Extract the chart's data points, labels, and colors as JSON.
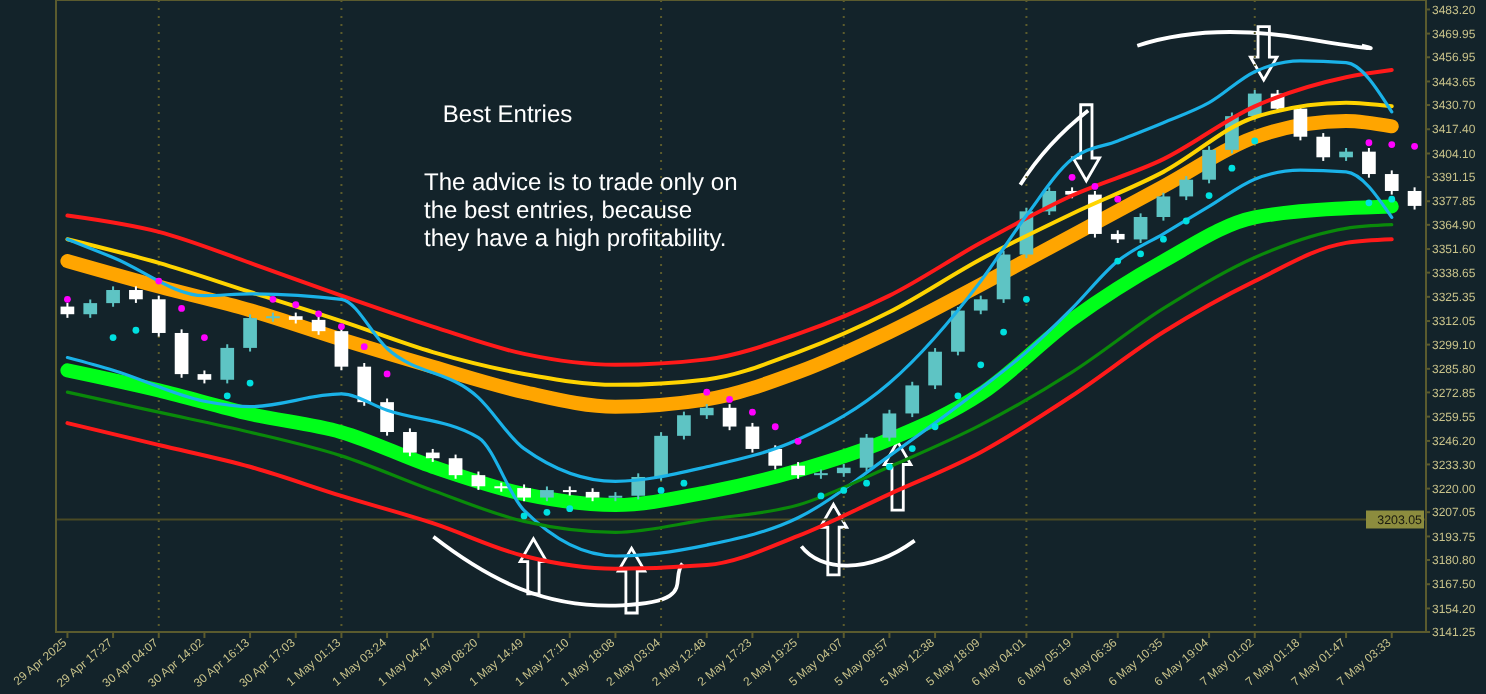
{
  "chart_data": {
    "type": "candlestick",
    "categories": [
      "29 Apr 2025",
      null,
      "29 Apr 17:27",
      null,
      "30 Apr 04:07",
      null,
      "30 Apr 14:02",
      null,
      "30 Apr 16:13",
      null,
      "30 Apr 17:03",
      null,
      "1 May 01:13",
      null,
      "1 May 03:24",
      null,
      "1 May 04:47",
      null,
      "1 May 08:20",
      null,
      "1 May 14:49",
      null,
      "1 May 17:10",
      null,
      "1 May 18:08",
      null,
      "2 May 03:04",
      null,
      "2 May 12:48",
      null,
      "2 May 17:23",
      null,
      "2 May 19:25",
      null,
      "5 May 04:07",
      null,
      "5 May 09:57",
      null,
      "5 May 12:38",
      null,
      "5 May 18:09",
      null,
      "6 May 04:01",
      null,
      "6 May 05:19",
      null,
      "6 May 06:36",
      null,
      "6 May 10:35",
      null,
      "6 May 19:04",
      null,
      "7 May 01:02",
      null,
      "7 May 01:18",
      null,
      "7 May 01:47",
      null,
      "7 May 03:33",
      null
    ],
    "ylim": [
      3141.25,
      3488.4
    ],
    "yticks": [
      {
        "value": 3483.2,
        "label": "3483.20"
      },
      {
        "value": 3469.95,
        "label": "3469.95"
      },
      {
        "value": 3456.95,
        "label": "3456.95"
      },
      {
        "value": 3443.65,
        "label": "3443.65"
      },
      {
        "value": 3430.7,
        "label": "3430.70"
      },
      {
        "value": 3417.4,
        "label": "3417.40"
      },
      {
        "value": 3404.1,
        "label": "3404.10"
      },
      {
        "value": 3391.15,
        "label": "3391.15"
      },
      {
        "value": 3377.85,
        "label": "3377.85"
      },
      {
        "value": 3364.9,
        "label": "3364.90"
      },
      {
        "value": 3351.6,
        "label": "3351.60"
      },
      {
        "value": 3338.65,
        "label": "3338.65"
      },
      {
        "value": 3325.35,
        "label": "3325.35"
      },
      {
        "value": 3312.05,
        "label": "3312.05"
      },
      {
        "value": 3299.1,
        "label": "3299.10"
      },
      {
        "value": 3285.8,
        "label": "3285.80"
      },
      {
        "value": 3272.85,
        "label": "3272.85"
      },
      {
        "value": 3259.55,
        "label": "3259.55"
      },
      {
        "value": 3246.2,
        "label": "3246.20"
      },
      {
        "value": 3233.3,
        "label": "3233.30"
      },
      {
        "value": 3220.0,
        "label": "3220.00"
      },
      {
        "value": 3207.05,
        "label": "3207.05"
      },
      {
        "value": 3193.75,
        "label": "3193.75"
      },
      {
        "value": 3180.8,
        "label": "3180.80"
      },
      {
        "value": 3167.5,
        "label": "3167.50"
      },
      {
        "value": 3154.2,
        "label": "3154.20"
      },
      {
        "value": 3141.25,
        "label": "3141.25"
      }
    ],
    "ohlc": [
      [
        3320.0,
        3322.0,
        3313.8,
        3315.8
      ],
      [
        3315.8,
        3323.9,
        3313.8,
        3321.9
      ],
      [
        3321.9,
        3331.1,
        3319.9,
        3329.1
      ],
      [
        3329.1,
        3331.1,
        3322.0,
        3324.0
      ],
      [
        3324.0,
        3326.0,
        3303.5,
        3305.5
      ],
      [
        3305.5,
        3307.5,
        3280.9,
        3282.9
      ],
      [
        3282.9,
        3284.9,
        3277.8,
        3279.8
      ],
      [
        3279.8,
        3299.3,
        3277.8,
        3297.3
      ],
      [
        3297.3,
        3315.7,
        3295.3,
        3313.7
      ],
      [
        3313.7,
        3316.7,
        3311.7,
        3314.7
      ],
      [
        3314.7,
        3316.7,
        3310.7,
        3312.7
      ],
      [
        3312.7,
        3314.7,
        3304.5,
        3306.5
      ],
      [
        3306.5,
        3308.5,
        3285.0,
        3287.0
      ],
      [
        3287.0,
        3289.0,
        3265.5,
        3267.5
      ],
      [
        3267.5,
        3269.5,
        3249.1,
        3251.1
      ],
      [
        3251.1,
        3253.1,
        3237.8,
        3239.8
      ],
      [
        3239.8,
        3241.8,
        3234.7,
        3236.7
      ],
      [
        3236.7,
        3238.7,
        3225.4,
        3227.4
      ],
      [
        3227.4,
        3229.4,
        3219.3,
        3221.3
      ],
      [
        3221.3,
        3223.3,
        3218.3,
        3220.3
      ],
      [
        3220.3,
        3222.3,
        3213.1,
        3215.1
      ],
      [
        3215.1,
        3221.2,
        3213.1,
        3219.2
      ],
      [
        3219.2,
        3221.2,
        3216.2,
        3218.2
      ],
      [
        3218.2,
        3220.2,
        3213.1,
        3215.1
      ],
      [
        3215.1,
        3218.1,
        3213.1,
        3216.1
      ],
      [
        3216.1,
        3228.4,
        3214.1,
        3226.4
      ],
      [
        3226.4,
        3251.0,
        3224.4,
        3249.0
      ],
      [
        3249.0,
        3262.3,
        3247.0,
        3260.3
      ],
      [
        3260.3,
        3266.4,
        3258.3,
        3264.4
      ],
      [
        3264.4,
        3266.4,
        3252.1,
        3254.1
      ],
      [
        3254.1,
        3256.1,
        3239.8,
        3241.8
      ],
      [
        3241.8,
        3243.8,
        3230.6,
        3232.6
      ],
      [
        3232.6,
        3234.6,
        3225.4,
        3227.4
      ],
      [
        3227.4,
        3230.5,
        3225.4,
        3228.5
      ],
      [
        3228.5,
        3233.5,
        3226.5,
        3231.5
      ],
      [
        3231.5,
        3250.0,
        3229.5,
        3248.0
      ],
      [
        3248.0,
        3263.3,
        3246.0,
        3261.3
      ],
      [
        3261.3,
        3278.7,
        3259.3,
        3276.7
      ],
      [
        3276.7,
        3297.2,
        3274.7,
        3295.2
      ],
      [
        3295.2,
        3319.8,
        3293.2,
        3317.8
      ],
      [
        3317.8,
        3326.0,
        3315.8,
        3324.0
      ],
      [
        3324.0,
        3350.6,
        3322.0,
        3348.6
      ],
      [
        3348.6,
        3374.3,
        3346.6,
        3372.3
      ],
      [
        3372.3,
        3385.5,
        3370.3,
        3383.5
      ],
      [
        3383.5,
        3385.5,
        3379.5,
        3381.5
      ],
      [
        3381.5,
        3383.5,
        3357.9,
        3359.9
      ],
      [
        3359.9,
        3361.9,
        3354.9,
        3356.9
      ],
      [
        3356.9,
        3371.2,
        3354.9,
        3369.2
      ],
      [
        3369.2,
        3382.5,
        3367.2,
        3380.5
      ],
      [
        3380.5,
        3391.7,
        3378.5,
        3389.7
      ],
      [
        3389.7,
        3408.1,
        3387.7,
        3406.1
      ],
      [
        3406.1,
        3426.6,
        3404.1,
        3424.6
      ],
      [
        3424.6,
        3439.0,
        3422.6,
        3437.0
      ],
      [
        3437.0,
        3439.0,
        3426.7,
        3428.7
      ],
      [
        3428.7,
        3430.7,
        3411.3,
        3413.3
      ],
      [
        3413.3,
        3415.3,
        3400.0,
        3402.0
      ],
      [
        3402.0,
        3407.1,
        3400.0,
        3405.1
      ],
      [
        3405.1,
        3407.1,
        3390.8,
        3392.8
      ],
      [
        3392.8,
        3394.8,
        3381.5,
        3383.5
      ],
      [
        3383.5,
        3385.5,
        3373.3,
        3375.3
      ]
    ],
    "colors": [
      "#ffffff",
      "#5ec4c4",
      "#5ec4c4",
      "#ffffff",
      "#ffffff",
      "#ffffff",
      "#ffffff",
      "#5ec4c4",
      "#5ec4c4",
      "#5ec4c4",
      "#ffffff",
      "#ffffff",
      "#ffffff",
      "#ffffff",
      "#ffffff",
      "#ffffff",
      "#ffffff",
      "#ffffff",
      "#ffffff",
      "#ffffff",
      "#ffffff",
      "#5ec4c4",
      "#ffffff",
      "#ffffff",
      "#5ec4c4",
      "#5ec4c4",
      "#5ec4c4",
      "#5ec4c4",
      "#5ec4c4",
      "#ffffff",
      "#ffffff",
      "#ffffff",
      "#ffffff",
      "#5ec4c4",
      "#5ec4c4",
      "#5ec4c4",
      "#5ec4c4",
      "#5ec4c4",
      "#5ec4c4",
      "#5ec4c4",
      "#5ec4c4",
      "#5ec4c4",
      "#5ec4c4",
      "#5ec4c4",
      "#ffffff",
      "#ffffff",
      "#ffffff",
      "#5ec4c4",
      "#5ec4c4",
      "#5ec4c4",
      "#5ec4c4",
      "#5ec4c4",
      "#5ec4c4",
      "#ffffff",
      "#ffffff",
      "#ffffff",
      "#5ec4c4",
      "#ffffff",
      "#ffffff",
      "#ffffff"
    ],
    "series": [
      {
        "type": "line",
        "color": "#ff1a1a",
        "x": [
          "29 Apr 2025",
          "30 Apr 04:07",
          "30 Apr 16:13",
          "1 May 01:13",
          "1 May 04:47",
          "1 May 14:49",
          "1 May 18:08",
          "2 May 12:48",
          "2 May 19:25",
          "5 May 09:57",
          "5 May 18:09",
          "6 May 05:19",
          "6 May 10:35",
          "7 May 01:02",
          "7 May 01:47",
          "7 May 03:33"
        ],
        "values": [
          3370,
          3361,
          3344,
          3326,
          3309,
          3294,
          3288,
          3291,
          3305,
          3326,
          3355,
          3381,
          3401,
          3430,
          3446,
          3450
        ]
      },
      {
        "type": "line",
        "color": "#ffd400",
        "x": [
          "29 Apr 2025",
          "30 Apr 04:07",
          "30 Apr 16:13",
          "1 May 01:13",
          "1 May 04:47",
          "1 May 14:49",
          "1 May 18:08",
          "2 May 12:48",
          "2 May 19:25",
          "5 May 09:57",
          "5 May 18:09",
          "6 May 05:19",
          "6 May 10:35",
          "7 May 01:02",
          "7 May 01:47",
          "7 May 03:33"
        ],
        "values": [
          3357,
          3344,
          3328,
          3312,
          3295,
          3283,
          3277,
          3280,
          3295,
          3317,
          3346,
          3371,
          3394,
          3424,
          3432,
          3430
        ]
      },
      {
        "type": "line",
        "color": "#ffa500",
        "x": [
          "29 Apr 2025",
          "30 Apr 04:07",
          "30 Apr 16:13",
          "1 May 01:13",
          "1 May 04:47",
          "1 May 14:49",
          "1 May 18:08",
          "2 May 12:48",
          "2 May 19:25",
          "5 May 09:57",
          "5 May 18:09",
          "6 May 05:19",
          "6 May 10:35",
          "7 May 01:02",
          "7 May 01:47",
          "7 May 03:33"
        ],
        "values": [
          3345,
          3331,
          3318,
          3302,
          3287,
          3273,
          3265,
          3269,
          3284,
          3306,
          3332,
          3359,
          3386,
          3413,
          3422,
          3419
        ]
      },
      {
        "type": "line",
        "color": "#1ab2e8",
        "x": [
          "29 Apr 2025",
          "29 Apr 17:27",
          "30 Apr 14:02",
          "30 Apr 16:13",
          "1 May 01:13",
          "1 May 03:24",
          "1 May 08:20",
          "1 May 14:49",
          "1 May 18:08",
          "2 May 12:48",
          "2 May 19:25",
          "5 May 09:57",
          "5 May 18:09",
          "6 May 04:01",
          "6 May 05:19",
          "6 May 06:36",
          "6 May 10:35",
          "6 May 19:04",
          "7 May 01:02",
          "7 May 01:18",
          "7 May 01:47",
          "7 May 03:33"
        ],
        "values": [
          3357,
          3347,
          3326,
          3327,
          3324,
          3297,
          3270,
          3242,
          3224,
          3232,
          3247,
          3278,
          3334,
          3370,
          3401,
          3411,
          3421,
          3432,
          3449,
          3455,
          3454,
          3427
        ]
      },
      {
        "type": "line",
        "color": "#1ab2e8",
        "x": [
          "29 Apr 2025",
          "29 Apr 17:27",
          "30 Apr 14:02",
          "30 Apr 16:13",
          "1 May 01:13",
          "1 May 03:24",
          "1 May 08:20",
          "1 May 14:49",
          "1 May 18:08",
          "2 May 12:48",
          "2 May 19:25",
          "5 May 09:57",
          "5 May 18:09",
          "6 May 04:01",
          "6 May 05:19",
          "6 May 06:36",
          "6 May 10:35",
          "6 May 19:04",
          "7 May 01:02",
          "7 May 01:18",
          "7 May 01:47",
          "7 May 03:33"
        ],
        "values": [
          3292,
          3285,
          3268,
          3265,
          3272,
          3263,
          3248,
          3208,
          3183,
          3189,
          3204,
          3238,
          3275,
          3295,
          3319,
          3345,
          3360,
          3375,
          3390,
          3395,
          3394,
          3369
        ]
      },
      {
        "type": "line",
        "color": "#00ff1a",
        "x": [
          "29 Apr 2025",
          "30 Apr 04:07",
          "30 Apr 16:13",
          "1 May 01:13",
          "1 May 04:47",
          "1 May 14:49",
          "1 May 18:08",
          "2 May 12:48",
          "2 May 19:25",
          "5 May 09:57",
          "5 May 18:09",
          "6 May 05:19",
          "6 May 10:35",
          "7 May 01:02",
          "7 May 01:47",
          "7 May 03:33"
        ],
        "values": [
          3285,
          3274,
          3261,
          3251,
          3232,
          3217,
          3211,
          3218,
          3230,
          3247,
          3272,
          3313,
          3345,
          3369,
          3374,
          3375
        ]
      },
      {
        "type": "line",
        "color": "#0a8a0a",
        "x": [
          "29 Apr 2025",
          "30 Apr 04:07",
          "30 Apr 16:13",
          "1 May 01:13",
          "1 May 04:47",
          "1 May 14:49",
          "1 May 18:08",
          "2 May 12:48",
          "2 May 19:25",
          "5 May 09:57",
          "5 May 18:09",
          "6 May 05:19",
          "6 May 10:35",
          "7 May 01:02",
          "7 May 01:47",
          "7 May 03:33"
        ],
        "values": [
          3273,
          3262,
          3251,
          3238,
          3219,
          3202,
          3196,
          3203,
          3211,
          3232,
          3255,
          3284,
          3319,
          3347,
          3363,
          3365
        ]
      },
      {
        "type": "line",
        "color": "#ff1a1a",
        "x": [
          "29 Apr 2025",
          "30 Apr 04:07",
          "30 Apr 16:13",
          "1 May 01:13",
          "1 May 04:47",
          "1 May 14:49",
          "1 May 18:08",
          "2 May 12:48",
          "2 May 19:25",
          "5 May 09:57",
          "5 May 18:09",
          "6 May 05:19",
          "6 May 10:35",
          "7 May 01:02",
          "7 May 01:47",
          "7 May 03:33"
        ],
        "values": [
          3256,
          3244,
          3232,
          3216,
          3201,
          3183,
          3176,
          3178,
          3194,
          3217,
          3240,
          3271,
          3306,
          3334,
          3355,
          3357
        ]
      },
      {
        "type": "scatter",
        "color": "#ff00ff",
        "marker": "circle",
        "values": [
          3324,
          null,
          null,
          null,
          3334,
          3319,
          3303,
          null,
          null,
          3324,
          3321,
          3316,
          3309,
          3298,
          3283,
          null,
          null,
          null,
          null,
          null,
          null,
          null,
          null,
          null,
          null,
          null,
          null,
          null,
          3273,
          3269,
          3262,
          3254,
          3246,
          null,
          null,
          null,
          null,
          null,
          null,
          null,
          null,
          null,
          null,
          null,
          3391,
          3386,
          3379,
          null,
          null,
          null,
          null,
          null,
          null,
          null,
          null,
          null,
          null,
          3410,
          3409,
          3408
        ]
      },
      {
        "type": "scatter",
        "color": "#00e0e0",
        "marker": "circle",
        "values": [
          null,
          null,
          3303,
          3307,
          null,
          null,
          null,
          3271,
          3278,
          null,
          null,
          null,
          null,
          null,
          null,
          null,
          null,
          null,
          null,
          null,
          3205,
          3207,
          3209,
          null,
          null,
          null,
          3219,
          3223,
          null,
          null,
          null,
          null,
          null,
          3216,
          3219,
          3223,
          3232,
          3242,
          3254,
          3271,
          3288,
          3306,
          3324,
          null,
          null,
          null,
          3345,
          3349,
          3357,
          3367,
          3381,
          3396,
          3411,
          null,
          null,
          null,
          null,
          3377,
          3379,
          null
        ]
      }
    ],
    "ref_lines": [
      {
        "axis": "x",
        "value": "30 Apr 04:07",
        "color": "#5c5c2c",
        "line_style": "dotted"
      },
      {
        "axis": "x",
        "value": "1 May 01:13",
        "color": "#5c5c2c",
        "line_style": "dotted"
      },
      {
        "axis": "x",
        "value": "2 May 03:04",
        "color": "#5c5c2c",
        "line_style": "dotted"
      },
      {
        "axis": "x",
        "value": "5 May 04:07",
        "color": "#5c5c2c",
        "line_style": "dotted"
      },
      {
        "axis": "x",
        "value": "6 May 04:01",
        "color": "#5c5c2c",
        "line_style": "dotted"
      },
      {
        "axis": "x",
        "value": "7 May 01:02",
        "color": "#5c5c2c",
        "line_style": "dotted"
      },
      {
        "axis": "y",
        "value": 3203.05,
        "label": "3203.05",
        "color": "#4a4a24"
      }
    ],
    "annotations": [
      "Best Entries",
      "The advice is to trade only on",
      "the best entries, because",
      "they have a high profitability."
    ]
  }
}
